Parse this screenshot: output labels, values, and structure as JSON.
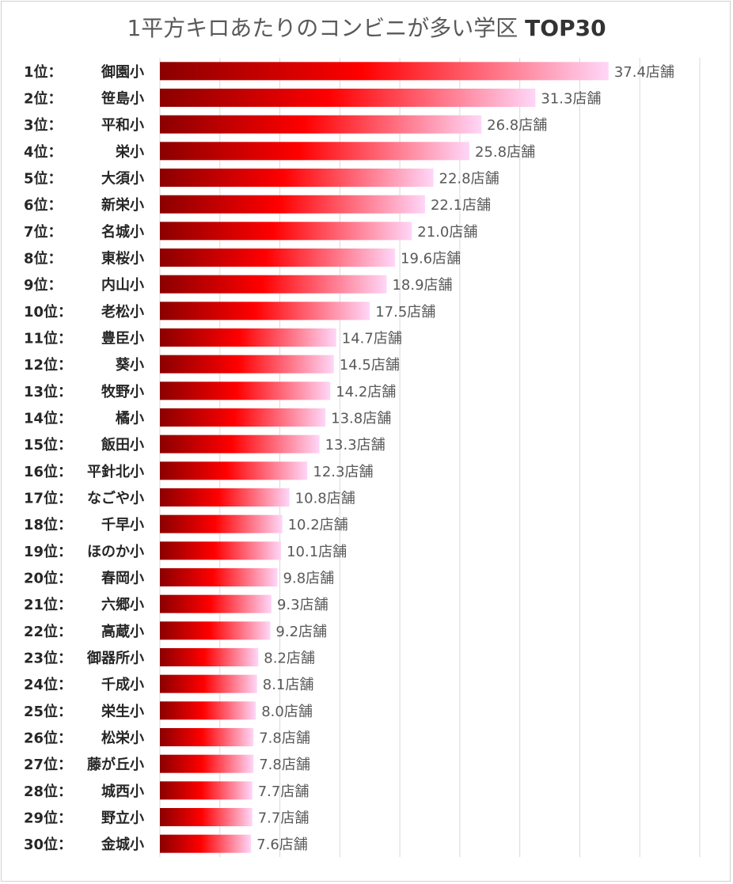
{
  "chart_data": {
    "type": "bar",
    "orientation": "horizontal",
    "title": "1平方キロあたりのコンビニが多い学区",
    "title_suffix": "TOP30",
    "xlabel": "",
    "ylabel": "",
    "xlim": [
      0,
      45
    ],
    "grid": true,
    "legend": "none",
    "value_unit": "店舗",
    "gradient": [
      "#8b0000",
      "#ff0000",
      "#ffd6f8"
    ],
    "ranks": [
      "1位：",
      "2位：",
      "3位：",
      "4位：",
      "5位：",
      "6位：",
      "7位：",
      "8位：",
      "9位：",
      "10位：",
      "11位：",
      "12位：",
      "13位：",
      "14位：",
      "15位：",
      "16位：",
      "17位：",
      "18位：",
      "19位：",
      "20位：",
      "21位：",
      "22位：",
      "23位：",
      "24位：",
      "25位：",
      "26位：",
      "27位：",
      "28位：",
      "29位：",
      "30位："
    ],
    "categories": [
      "御園小",
      "笹島小",
      "平和小",
      "栄小",
      "大須小",
      "新栄小",
      "名城小",
      "東桜小",
      "内山小",
      "老松小",
      "豊臣小",
      "葵小",
      "牧野小",
      "橘小",
      "飯田小",
      "平針北小",
      "なごや小",
      "千早小",
      "ほのか小",
      "春岡小",
      "六郷小",
      "高蔵小",
      "御器所小",
      "千成小",
      "栄生小",
      "松栄小",
      "藤が丘小",
      "城西小",
      "野立小",
      "金城小"
    ],
    "values": [
      37.4,
      31.3,
      26.8,
      25.8,
      22.8,
      22.1,
      21.0,
      19.6,
      18.9,
      17.5,
      14.7,
      14.5,
      14.2,
      13.8,
      13.3,
      12.3,
      10.8,
      10.2,
      10.1,
      9.8,
      9.3,
      9.2,
      8.2,
      8.1,
      8.0,
      7.8,
      7.8,
      7.7,
      7.7,
      7.6
    ],
    "labels": [
      "37.4店舗",
      "31.3店舗",
      "26.8店舗",
      "25.8店舗",
      "22.8店舗",
      "22.1店舗",
      "21.0店舗",
      "19.6店舗",
      "18.9店舗",
      "17.5店舗",
      "14.7店舗",
      "14.5店舗",
      "14.2店舗",
      "13.8店舗",
      "13.3店舗",
      "12.3店舗",
      "10.8店舗",
      "10.2店舗",
      "10.1店舗",
      "9.8店舗",
      "9.3店舗",
      "9.2店舗",
      "8.2店舗",
      "8.1店舗",
      "8.0店舗",
      "7.8店舗",
      "7.8店舗",
      "7.7店舗",
      "7.7店舗",
      "7.6店舗"
    ]
  }
}
